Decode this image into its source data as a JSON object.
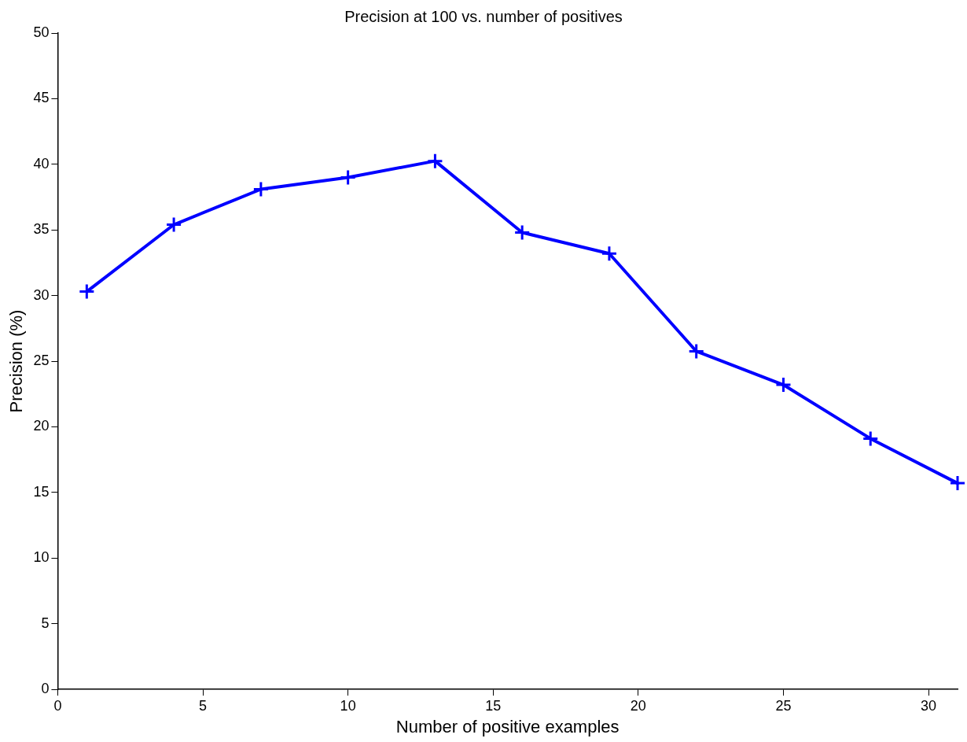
{
  "chart_data": {
    "type": "line",
    "title": "Precision at 100 vs. number of positives",
    "xlabel": "Number of positive examples",
    "ylabel": "Precision (%)",
    "x": [
      1,
      4,
      7,
      10,
      13,
      16,
      19,
      22,
      25,
      28,
      31
    ],
    "series": [
      {
        "color": "#0000ff",
        "values": [
          30.3,
          35.4,
          38.1,
          39.0,
          40.25,
          34.8,
          33.2,
          25.75,
          23.2,
          19.1,
          15.7
        ]
      }
    ],
    "xlim": [
      0,
      31
    ],
    "xticks": [
      0,
      5,
      10,
      15,
      20,
      25,
      30
    ],
    "ylim": [
      0,
      50
    ],
    "yticks": [
      0,
      5,
      10,
      15,
      20,
      25,
      30,
      35,
      40,
      45,
      50
    ],
    "grid": false,
    "legend": false,
    "marker": "cross",
    "line_style": "solid"
  }
}
